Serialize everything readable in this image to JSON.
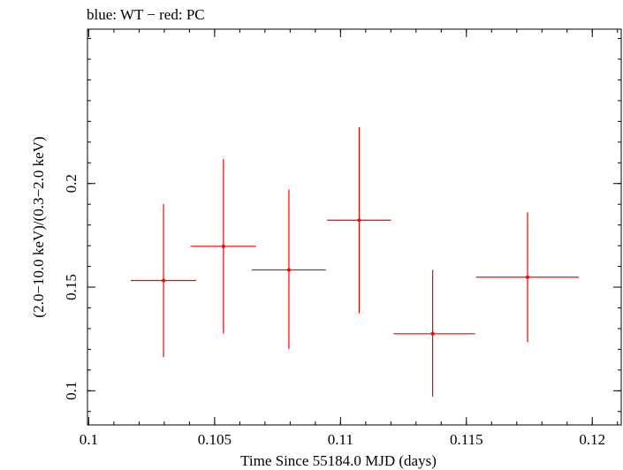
{
  "chart_data": {
    "type": "scatter",
    "title": "blue: WT − red: PC",
    "xlabel": "Time Since 55184.0 MJD (days)",
    "ylabel": "(2.0−10.0 keV)/(0.3−2.0 keV)",
    "xlim": [
      0.09995,
      0.12115
    ],
    "ylim": [
      0.0835,
      0.2745
    ],
    "x_ticks": [
      {
        "value": 0.1,
        "label": "0.1"
      },
      {
        "value": 0.105,
        "label": "0.105"
      },
      {
        "value": 0.11,
        "label": "0.11"
      },
      {
        "value": 0.115,
        "label": "0.115"
      },
      {
        "value": 0.12,
        "label": "0.12"
      }
    ],
    "y_ticks": [
      {
        "value": 0.1,
        "label": "0.1"
      },
      {
        "value": 0.15,
        "label": "0.15"
      },
      {
        "value": 0.2,
        "label": "0.2"
      }
    ],
    "x_minor_step": 0.001,
    "y_minor_step": 0.01,
    "grid": false,
    "series": [
      {
        "name": "",
        "color": "#ff0000",
        "points": [
          {
            "x": 0.10297,
            "y": 0.1532,
            "x_lo": 0.10167,
            "x_hi": 0.10427,
            "y_lo": 0.1162,
            "y_hi": 0.1902
          },
          {
            "x": 0.10535,
            "y": 0.1697,
            "x_lo": 0.10405,
            "x_hi": 0.10665,
            "y_lo": 0.1276,
            "y_hi": 0.2118
          },
          {
            "x": 0.10795,
            "y": 0.1583,
            "x_lo": 0.10647,
            "x_hi": 0.10942,
            "y_lo": 0.1202,
            "y_hi": 0.1971
          },
          {
            "x": 0.11074,
            "y": 0.1823,
            "x_lo": 0.10947,
            "x_hi": 0.11201,
            "y_lo": 0.1373,
            "y_hi": 0.2272
          },
          {
            "x": 0.11366,
            "y": 0.1275,
            "x_lo": 0.1121,
            "x_hi": 0.11535,
            "y_lo": 0.0972,
            "y_hi": 0.1583
          },
          {
            "x": 0.11743,
            "y": 0.1548,
            "x_lo": 0.11538,
            "x_hi": 0.11946,
            "y_lo": 0.1235,
            "y_hi": 0.1861
          }
        ]
      }
    ]
  }
}
